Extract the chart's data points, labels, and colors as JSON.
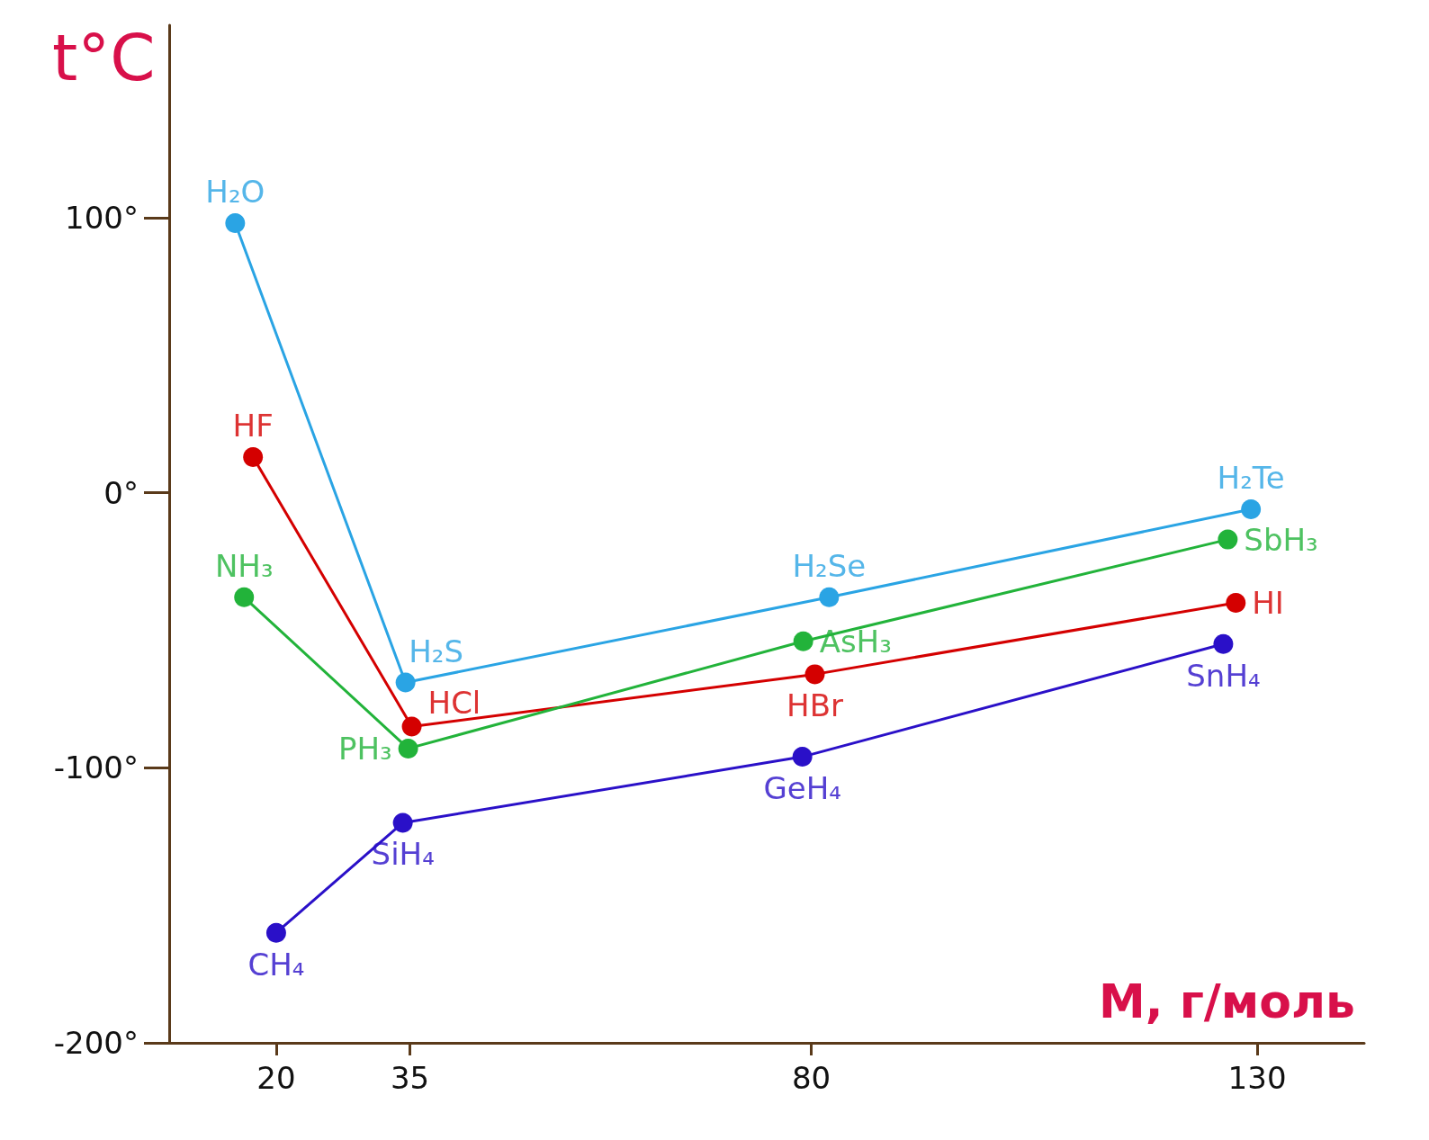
{
  "chart_data": {
    "type": "line",
    "xlabel": "M, г/моль",
    "ylabel": "t°C",
    "marker": "circle",
    "line_style": "solid",
    "xlim": [
      8,
      142
    ],
    "xticks": [
      20,
      35,
      80,
      130
    ],
    "ylim": [
      -200,
      170
    ],
    "yticks": [
      {
        "value": 100,
        "label": "100°"
      },
      {
        "value": 0,
        "label": "0°"
      },
      {
        "value": -100,
        "label": "-100°"
      },
      {
        "value": -200,
        "label": "-200°"
      }
    ],
    "series": [
      {
        "color": "#2aa4e4",
        "x": [
          15.4,
          34.5,
          82,
          129.3
        ],
        "values": [
          98,
          -69,
          -38,
          -6
        ]
      },
      {
        "color": "#d40000",
        "x": [
          17.4,
          35.2,
          80.4,
          127.6
        ],
        "values": [
          13,
          -85,
          -66,
          -40
        ]
      },
      {
        "color": "#22b33a",
        "x": [
          16.4,
          34.8,
          79.1,
          126.7
        ],
        "values": [
          -38,
          -93,
          -54,
          -17
        ]
      },
      {
        "color": "#2a10c8",
        "x": [
          20,
          34.2,
          79,
          126.2
        ],
        "values": [
          -160,
          -120,
          -96,
          -55
        ]
      }
    ],
    "annotations": [
      {
        "text": "H₂O",
        "x": 15.4,
        "y": 98
      },
      {
        "text": "HF",
        "x": 17.4,
        "y": 13
      },
      {
        "text": "NH₃",
        "x": 16.4,
        "y": -38
      },
      {
        "text": "CH₄",
        "x": 20,
        "y": -160
      },
      {
        "text": "H₂S",
        "x": 34.5,
        "y": -69
      },
      {
        "text": "HCl",
        "x": 35.2,
        "y": -85
      },
      {
        "text": "PH₃",
        "x": 34.8,
        "y": -93
      },
      {
        "text": "SiH₄",
        "x": 34.2,
        "y": -120
      },
      {
        "text": "H₂Se",
        "x": 82,
        "y": -38
      },
      {
        "text": "AsH₃",
        "x": 79.1,
        "y": -54
      },
      {
        "text": "HBr",
        "x": 80.4,
        "y": -66
      },
      {
        "text": "GeH₄",
        "x": 79,
        "y": -96
      },
      {
        "text": "H₂Te",
        "x": 129.3,
        "y": -6
      },
      {
        "text": "SbH₃",
        "x": 126.7,
        "y": -17
      },
      {
        "text": "HI",
        "x": 127.6,
        "y": -40
      },
      {
        "text": "SnH₄",
        "x": 126.2,
        "y": -55
      }
    ]
  }
}
